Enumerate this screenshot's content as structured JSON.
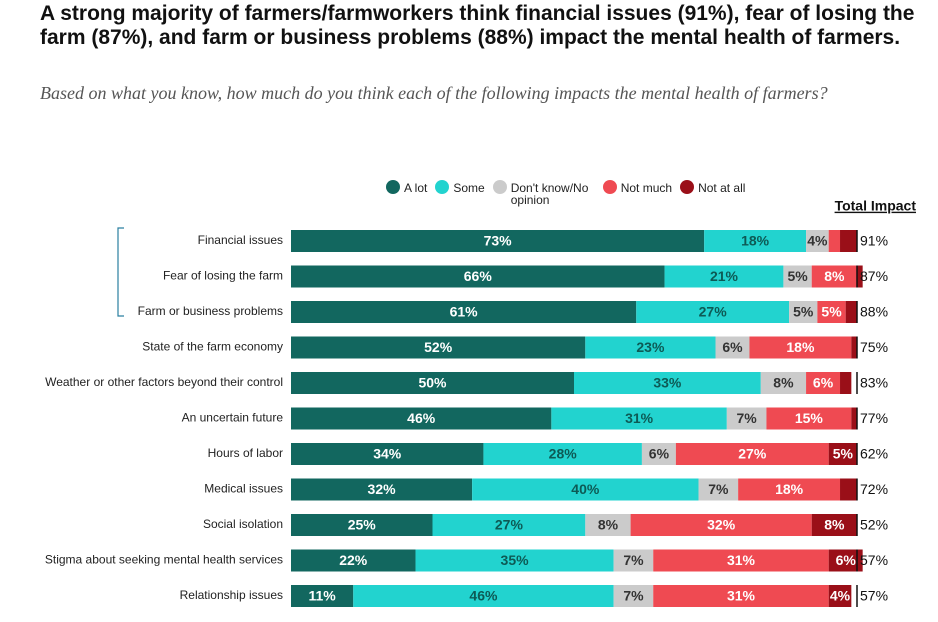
{
  "chart_data": {
    "type": "stacked-bar-horizontal",
    "title": "A strong majority of farmers/farmworkers think financial issues (91%), fear of losing the farm (87%), and farm or business problems (88%) impact the mental health of farmers.",
    "subtitle": "Based on what you know, how much do you think each of the following impacts the mental health of farmers?",
    "categories": [
      "Financial issues",
      "Fear of losing the farm",
      "Farm or business problems",
      "State of the farm economy",
      "Weather or other factors beyond their control",
      "An uncertain future",
      "Hours of labor",
      "Medical issues",
      "Social isolation",
      "Stigma about seeking mental health services",
      "Relationship issues"
    ],
    "xlim": [
      0,
      100
    ],
    "series": [
      {
        "name": "A lot",
        "color": "#12675f",
        "label_color": "#ffffff",
        "values": [
          73,
          66,
          61,
          52,
          50,
          46,
          34,
          32,
          25,
          22,
          11
        ],
        "value_labels": [
          "73%",
          "66%",
          "61%",
          "52%",
          "50%",
          "46%",
          "34%",
          "32%",
          "25%",
          "22%",
          "11%"
        ]
      },
      {
        "name": "Some",
        "color": "#22d3cf",
        "label_color": "#0d5a55",
        "values": [
          18,
          21,
          27,
          23,
          33,
          31,
          28,
          40,
          27,
          35,
          46
        ],
        "value_labels": [
          "18%",
          "21%",
          "27%",
          "23%",
          "33%",
          "31%",
          "28%",
          "40%",
          "27%",
          "35%",
          "46%"
        ]
      },
      {
        "name": "Don't know/No opinion",
        "color": "#cbcbcb",
        "label_color": "#333333",
        "values": [
          4,
          5,
          5,
          6,
          8,
          7,
          6,
          7,
          8,
          7,
          7
        ],
        "value_labels": [
          "4%",
          "5%",
          "5%",
          "6%",
          "8%",
          "7%",
          "6%",
          "7%",
          "8%",
          "7%",
          "7%"
        ]
      },
      {
        "name": "Not much",
        "color": "#ef4a52",
        "label_color": "#ffffff",
        "values": [
          2,
          8,
          5,
          18,
          6,
          15,
          27,
          18,
          32,
          31,
          31
        ],
        "value_labels": [
          null,
          "8%",
          "5%",
          "18%",
          "6%",
          "15%",
          "27%",
          "18%",
          "32%",
          "31%",
          "31%"
        ]
      },
      {
        "name": "Not at all",
        "color": "#9a0f18",
        "label_color": "#ffffff",
        "values": [
          3,
          1,
          2,
          1,
          2,
          1,
          5,
          3,
          8,
          6,
          4
        ],
        "value_labels": [
          null,
          null,
          null,
          null,
          null,
          null,
          "5%",
          null,
          "8%",
          "6%",
          "4%"
        ]
      }
    ],
    "total_impact": {
      "title": "Total Impact",
      "values": [
        91,
        87,
        88,
        75,
        83,
        77,
        62,
        72,
        52,
        57,
        57
      ],
      "value_labels": [
        "91%",
        "87%",
        "88%",
        "75%",
        "83%",
        "77%",
        "62%",
        "72%",
        "52%",
        "57%",
        "57%"
      ]
    }
  }
}
